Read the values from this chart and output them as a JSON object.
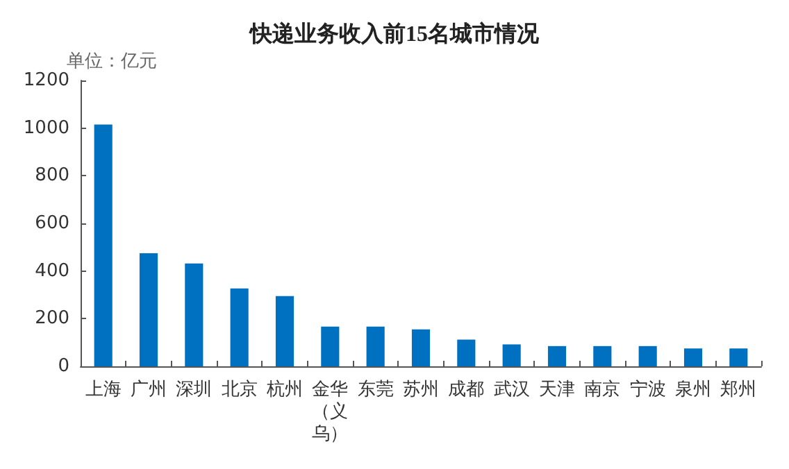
{
  "chart_data": {
    "type": "bar",
    "title": "快递业务收入前15名城市情况",
    "ylabel": "单位：亿元",
    "categories": [
      "上海",
      "广州",
      "深圳",
      "北京",
      "杭州",
      "金华（义乌）",
      "东莞",
      "苏州",
      "成都",
      "武汉",
      "天津",
      "南京",
      "宁波",
      "泉州",
      "郑州"
    ],
    "values": [
      1015,
      475,
      432,
      327,
      295,
      167,
      167,
      155,
      112,
      92,
      85,
      85,
      85,
      75,
      75
    ],
    "color": "#0070c0",
    "ylim": [
      0,
      1200
    ],
    "yticks": [
      0,
      200,
      400,
      600,
      800,
      1000,
      1200
    ],
    "grid": false
  }
}
